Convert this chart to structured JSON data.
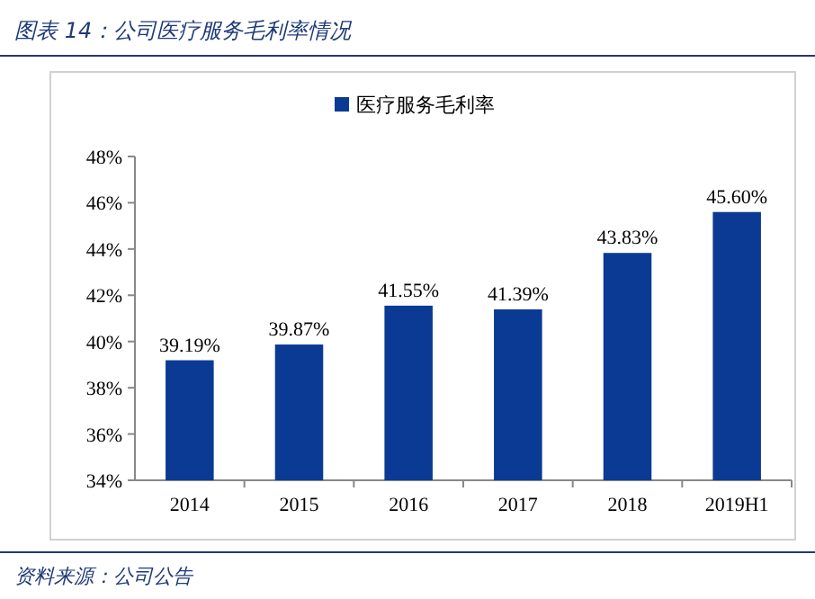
{
  "chart_data": {
    "type": "bar",
    "title": "图表 14：公司医疗服务毛利率情况",
    "categories": [
      "2014",
      "2015",
      "2016",
      "2017",
      "2018",
      "2019H1"
    ],
    "series": [
      {
        "name": "医疗服务毛利率",
        "color": "#0a3a94",
        "values": [
          39.19,
          39.87,
          41.55,
          41.39,
          43.83,
          45.6
        ],
        "value_labels": [
          "39.19%",
          "39.87%",
          "41.55%",
          "41.39%",
          "43.83%",
          "45.60%"
        ]
      }
    ],
    "ylim": [
      34,
      48
    ],
    "yticks": [
      {
        "value": 34,
        "label": "34%"
      },
      {
        "value": 36,
        "label": "36%"
      },
      {
        "value": 38,
        "label": "38%"
      },
      {
        "value": 40,
        "label": "40%"
      },
      {
        "value": 42,
        "label": "42%"
      },
      {
        "value": 44,
        "label": "44%"
      },
      {
        "value": 46,
        "label": "46%"
      },
      {
        "value": 48,
        "label": "48%"
      }
    ],
    "legend": "top",
    "grid": false,
    "annotations": [
      "资料来源：公司公告"
    ]
  }
}
